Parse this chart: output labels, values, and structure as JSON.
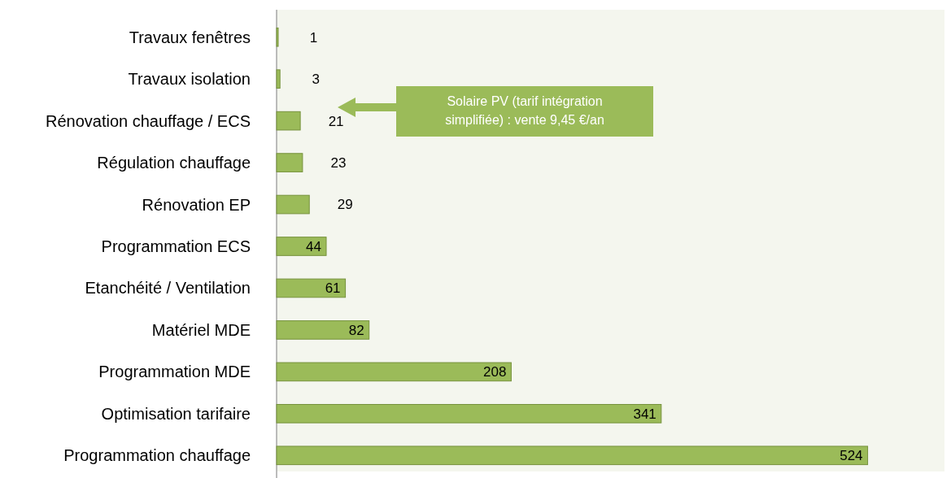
{
  "chart_data": {
    "type": "bar",
    "orientation": "horizontal",
    "data_labels": true,
    "categories": [
      "Travaux fenêtres",
      "Travaux isolation",
      "Rénovation chauffage / ECS",
      "Régulation chauffage",
      "Rénovation EP",
      "Programmation ECS",
      "Etanchéité / Ventilation",
      "Matériel MDE",
      "Programmation MDE",
      "Optimisation tarifaire",
      "Programmation chauffage"
    ],
    "values": [
      1,
      3,
      21,
      23,
      29,
      44,
      61,
      82,
      208,
      341,
      524
    ],
    "color": "#9bbb59",
    "annotations": [
      "Solaire PV (tarif intégration simplifiée) : vente 9,45 €/an"
    ]
  }
}
